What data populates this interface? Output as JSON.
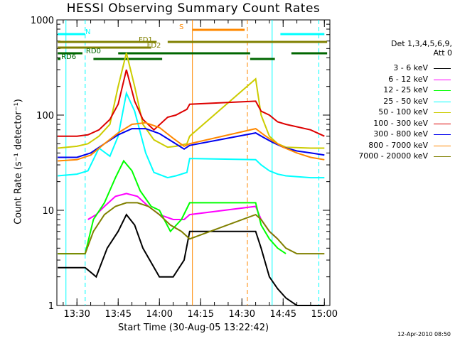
{
  "chart_data": {
    "type": "line",
    "title": "HESSI Observing Summary Count Rates",
    "xlabel": "Start Time (30-Aug-05 13:22:42)",
    "ylabel": "Count Rate (s⁻¹ detector⁻¹)",
    "y_scale": "log",
    "ylim": [
      1,
      1000
    ],
    "xlim": [
      "13:22:42",
      "15:02:00"
    ],
    "x_ticks": [
      "13:30",
      "13:45",
      "14:00",
      "14:15",
      "14:30",
      "14:45",
      "15:00"
    ],
    "y_ticks": [
      "1",
      "10",
      "100",
      "1000"
    ],
    "legend_header": [
      "Det 1,3,4,5,6,9,",
      "Att 0"
    ],
    "legend_position": "right",
    "series": [
      {
        "name": "3 - 6 keV",
        "color": "#000000",
        "x": [
          "13:23",
          "13:33",
          "13:37",
          "13:41",
          "13:45",
          "13:48",
          "13:51",
          "13:54",
          "14:00",
          "14:05",
          "14:09",
          "14:11",
          "14:35",
          "14:37",
          "14:40",
          "14:43",
          "14:46",
          "14:50",
          "15:00"
        ],
        "y": [
          2.5,
          2.5,
          2.0,
          4,
          6,
          9,
          7,
          4,
          2,
          2,
          3,
          6,
          6,
          4,
          2,
          1.5,
          1.2,
          1.0,
          1.0
        ]
      },
      {
        "name": "6 - 12 keV",
        "color": "#ff00ff",
        "x": [
          "13:34",
          "13:37",
          "13:40",
          "13:44",
          "13:48",
          "13:52",
          "13:56",
          "14:00",
          "14:05",
          "14:09",
          "14:11",
          "14:35",
          "14:37",
          "14:40",
          "14:43"
        ],
        "y": [
          8,
          9,
          11,
          14,
          15,
          14,
          11,
          9,
          8,
          8,
          9,
          11,
          8,
          6,
          5
        ]
      },
      {
        "name": "12 - 25 keV",
        "color": "#00ff00",
        "x": [
          "13:23",
          "13:33",
          "13:36",
          "13:40",
          "13:44",
          "13:47",
          "13:50",
          "13:53",
          "13:57",
          "14:00",
          "14:04",
          "14:08",
          "14:11",
          "14:35",
          "14:37",
          "14:40",
          "14:43",
          "14:46"
        ],
        "y": [
          3.5,
          3.5,
          8,
          12,
          22,
          33,
          26,
          16,
          11,
          10,
          6,
          8,
          12,
          12,
          7,
          5,
          4,
          3.5
        ]
      },
      {
        "name": "25 - 50 keV",
        "color": "#00ffff",
        "x": [
          "13:23",
          "13:30",
          "13:34",
          "13:38",
          "13:42",
          "13:45",
          "13:48",
          "13:51",
          "13:55",
          "13:58",
          "14:03",
          "14:06",
          "14:10",
          "14:11",
          "14:35",
          "14:37",
          "14:40",
          "14:43",
          "14:46",
          "14:55",
          "15:00"
        ],
        "y": [
          23,
          24,
          26,
          45,
          37,
          60,
          170,
          110,
          40,
          25,
          22,
          23,
          25,
          35,
          34,
          30,
          26,
          24,
          23,
          22,
          22
        ]
      },
      {
        "name": "50 - 100 keV",
        "color": "#cccc00",
        "x": [
          "13:23",
          "13:30",
          "13:34",
          "13:38",
          "13:42",
          "13:45",
          "13:48",
          "13:51",
          "13:54",
          "13:58",
          "14:03",
          "14:06",
          "14:10",
          "14:11",
          "14:35",
          "14:37",
          "14:40",
          "14:43",
          "14:46",
          "14:55",
          "15:00"
        ],
        "y": [
          45,
          47,
          50,
          60,
          80,
          200,
          450,
          200,
          80,
          55,
          46,
          47,
          50,
          60,
          240,
          100,
          60,
          50,
          46,
          45,
          45
        ]
      },
      {
        "name": "100 - 300 keV",
        "color": "#dd0000",
        "x": [
          "13:23",
          "13:30",
          "13:34",
          "13:38",
          "13:42",
          "13:45",
          "13:48",
          "13:51",
          "13:54",
          "13:58",
          "14:03",
          "14:06",
          "14:10",
          "14:11",
          "14:35",
          "14:37",
          "14:40",
          "14:43",
          "14:46",
          "14:55",
          "15:00"
        ],
        "y": [
          60,
          60,
          62,
          70,
          90,
          130,
          300,
          140,
          90,
          70,
          95,
          100,
          115,
          130,
          140,
          110,
          100,
          85,
          80,
          70,
          60
        ]
      },
      {
        "name": "300 - 800 keV",
        "color": "#0000ee",
        "x": [
          "13:23",
          "13:30",
          "13:35",
          "13:40",
          "13:45",
          "13:50",
          "13:55",
          "14:00",
          "14:05",
          "14:09",
          "14:11",
          "14:35",
          "14:38",
          "14:41",
          "14:45",
          "14:50",
          "14:55",
          "15:00"
        ],
        "y": [
          36,
          36,
          40,
          50,
          62,
          72,
          72,
          64,
          52,
          44,
          48,
          65,
          58,
          52,
          46,
          42,
          40,
          38
        ]
      },
      {
        "name": "800 - 7000 keV",
        "color": "#ff8800",
        "x": [
          "13:23",
          "13:30",
          "13:35",
          "13:40",
          "13:45",
          "13:50",
          "13:55",
          "14:00",
          "14:05",
          "14:09",
          "14:11",
          "14:35",
          "14:38",
          "14:41",
          "14:45",
          "14:50",
          "14:55",
          "15:00"
        ],
        "y": [
          33,
          34,
          38,
          50,
          65,
          80,
          83,
          74,
          57,
          47,
          50,
          72,
          62,
          54,
          46,
          40,
          36,
          34
        ]
      },
      {
        "name": "7000 - 20000 keV",
        "color": "#808000",
        "x": [
          "13:23",
          "13:33",
          "13:36",
          "13:40",
          "13:44",
          "13:48",
          "13:52",
          "13:56",
          "14:00",
          "14:04",
          "14:08",
          "14:11",
          "14:35",
          "14:37",
          "14:40",
          "14:43",
          "14:46",
          "14:50",
          "14:55",
          "15:00"
        ],
        "y": [
          3.5,
          3.5,
          6,
          9,
          11,
          12,
          12,
          11,
          9,
          7,
          6,
          5,
          9,
          8,
          6,
          5,
          4,
          3.5,
          3.5,
          3.5
        ]
      }
    ],
    "flag_bars": [
      {
        "name": "N",
        "color": "#00ffff",
        "segments": [
          [
            "13:23",
            "13:33"
          ],
          [
            "14:44",
            "15:00"
          ]
        ]
      },
      {
        "name": "S",
        "color": "#ff8800",
        "segments": [
          [
            "14:12",
            "14:31"
          ]
        ]
      },
      {
        "name": "FD1",
        "color": "#808000",
        "segments": [
          [
            "13:23",
            "13:59"
          ],
          [
            "14:03",
            "15:01"
          ]
        ]
      },
      {
        "name": "FD2",
        "color": "#808000",
        "segments": [
          [
            "13:23",
            "13:57"
          ]
        ]
      },
      {
        "name": "RD0",
        "color": "#006600",
        "segments": [
          [
            "13:23",
            "13:32"
          ],
          [
            "13:45",
            "14:33"
          ],
          [
            "14:48",
            "15:01"
          ]
        ]
      },
      {
        "name": "RD6",
        "color": "#006600",
        "segments": [
          [
            "13:23",
            "13:24"
          ],
          [
            "13:36",
            "14:01"
          ],
          [
            "14:33",
            "14:42"
          ]
        ]
      }
    ],
    "vertical_lines": [
      {
        "color": "#00ffff",
        "style": "dashed",
        "x": "13:33"
      },
      {
        "color": "#00ffff",
        "style": "solid",
        "x": "13:26"
      },
      {
        "color": "#00ffff",
        "style": "solid",
        "x": "14:41"
      },
      {
        "color": "#00ffff",
        "style": "dashed",
        "x": "14:58"
      },
      {
        "color": "#ff8800",
        "style": "solid",
        "x": "14:12"
      },
      {
        "color": "#ff8800",
        "style": "dashed",
        "x": "14:32"
      }
    ]
  },
  "footer": "12-Apr-2010 08:50"
}
